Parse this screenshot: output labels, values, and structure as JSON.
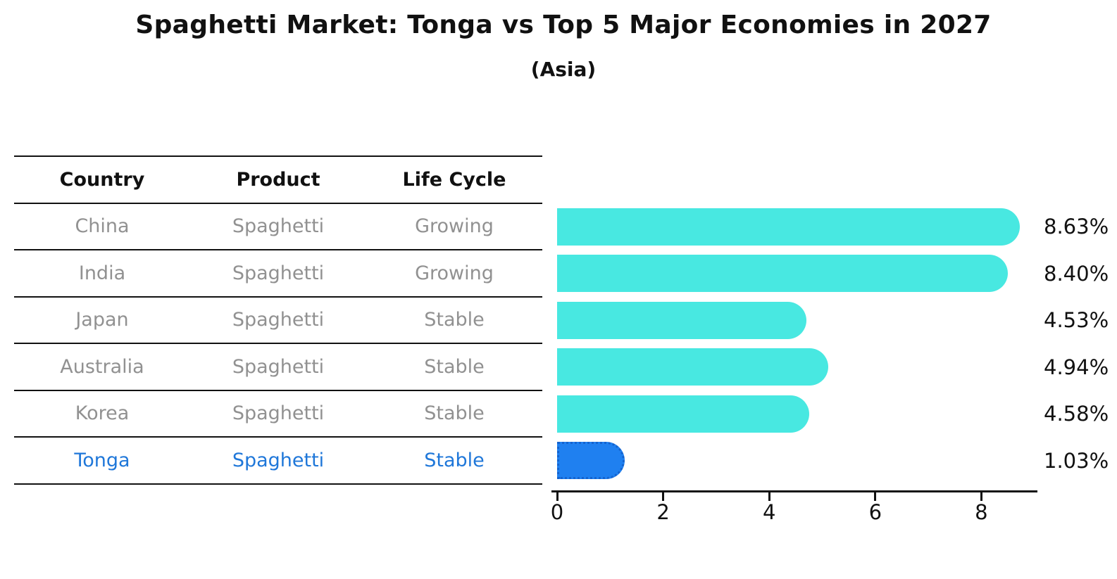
{
  "header": {
    "title": "Spaghetti Market: Tonga vs Top 5 Major Economies in 2027",
    "subtitle": "(Asia)"
  },
  "table": {
    "columns": [
      "Country",
      "Product",
      "Life Cycle"
    ],
    "rows": [
      {
        "country": "China",
        "product": "Spaghetti",
        "life_cycle": "Growing",
        "highlight": false
      },
      {
        "country": "India",
        "product": "Spaghetti",
        "life_cycle": "Growing",
        "highlight": false
      },
      {
        "country": "Japan",
        "product": "Spaghetti",
        "life_cycle": "Stable",
        "highlight": false
      },
      {
        "country": "Australia",
        "product": "Spaghetti",
        "life_cycle": "Stable",
        "highlight": false
      },
      {
        "country": "Korea",
        "product": "Spaghetti",
        "life_cycle": "Stable",
        "highlight": false
      },
      {
        "country": "Tonga",
        "product": "Spaghetti",
        "life_cycle": "Stable",
        "highlight": true
      }
    ]
  },
  "chart_data": {
    "type": "bar",
    "orientation": "horizontal",
    "title": "Spaghetti Market: Tonga vs Top 5 Major Economies in 2027",
    "subtitle": "(Asia)",
    "categories": [
      "China",
      "India",
      "Japan",
      "Australia",
      "Korea",
      "Tonga"
    ],
    "values": [
      8.63,
      8.4,
      4.53,
      4.94,
      4.58,
      1.03
    ],
    "bar_labels": [
      "8.63%",
      "8.40%",
      "4.53%",
      "4.94%",
      "4.58%",
      "1.03%"
    ],
    "x_ticks": [
      "0",
      "2",
      "4",
      "6",
      "8"
    ],
    "xlim": [
      0,
      9.1
    ],
    "grid": false,
    "legend": "none",
    "bar_color": "#48e8e1",
    "highlight_color": "#1f80f0",
    "highlight_border_color": "#1463cf",
    "highlight_index": 5
  }
}
